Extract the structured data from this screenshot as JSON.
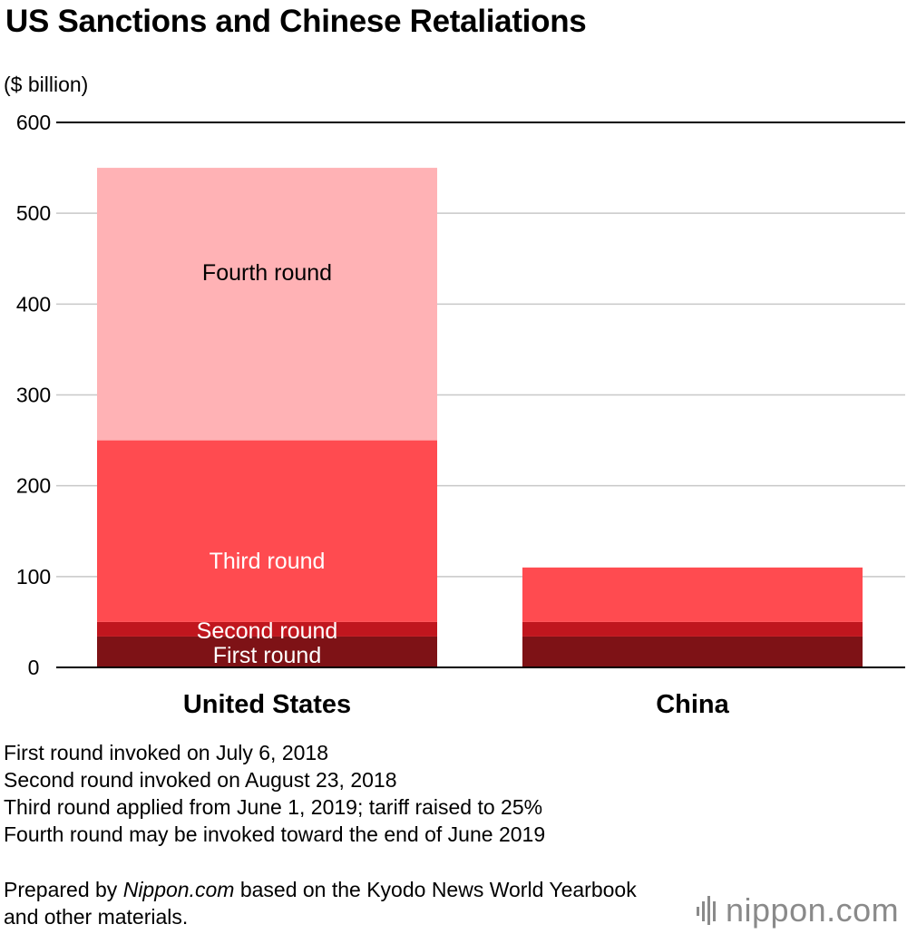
{
  "title": "US Sanctions and Chinese Retaliations",
  "unit_label": "($ billion)",
  "chart_data": {
    "type": "bar",
    "stacked": true,
    "title": "US Sanctions and Chinese Retaliations",
    "ylabel": "($ billion)",
    "ylim": [
      0,
      600
    ],
    "yticks": [
      0,
      100,
      200,
      300,
      400,
      500,
      600
    ],
    "grid": true,
    "categories": [
      "United States",
      "China"
    ],
    "series": [
      {
        "name": "First round",
        "values": [
          34,
          34
        ],
        "color": "#7e1216"
      },
      {
        "name": "Second round",
        "values": [
          16,
          16
        ],
        "color": "#c0161e"
      },
      {
        "name": "Third round",
        "values": [
          200,
          60
        ],
        "color": "#ff4b50"
      },
      {
        "name": "Fourth round",
        "values": [
          300,
          0
        ],
        "color": "#ffb2b5"
      }
    ],
    "segment_labels": [
      {
        "category": "United States",
        "series": "Fourth round",
        "text": "Fourth round",
        "color": "#000000"
      },
      {
        "category": "United States",
        "series": "Third round",
        "text": "Third round",
        "color": "#ffffff"
      },
      {
        "category": "United States",
        "series": "Second round",
        "text": "Second round",
        "color": "#ffffff"
      },
      {
        "category": "United States",
        "series": "First round",
        "text": "First round",
        "color": "#ffffff"
      }
    ]
  },
  "notes": [
    "First round invoked on July 6, 2018",
    "Second round invoked on August 23, 2018",
    "Third round applied from June 1, 2019; tariff raised to 25%",
    "Fourth round may be invoked toward the end of June 2019"
  ],
  "credit": {
    "prefix": "Prepared by ",
    "source": "Nippon.com",
    "suffix": " based on the Kyodo News World Yearbook and other materials."
  },
  "logo": {
    "text": "nippon.com",
    "color": "#8a8a8a"
  }
}
